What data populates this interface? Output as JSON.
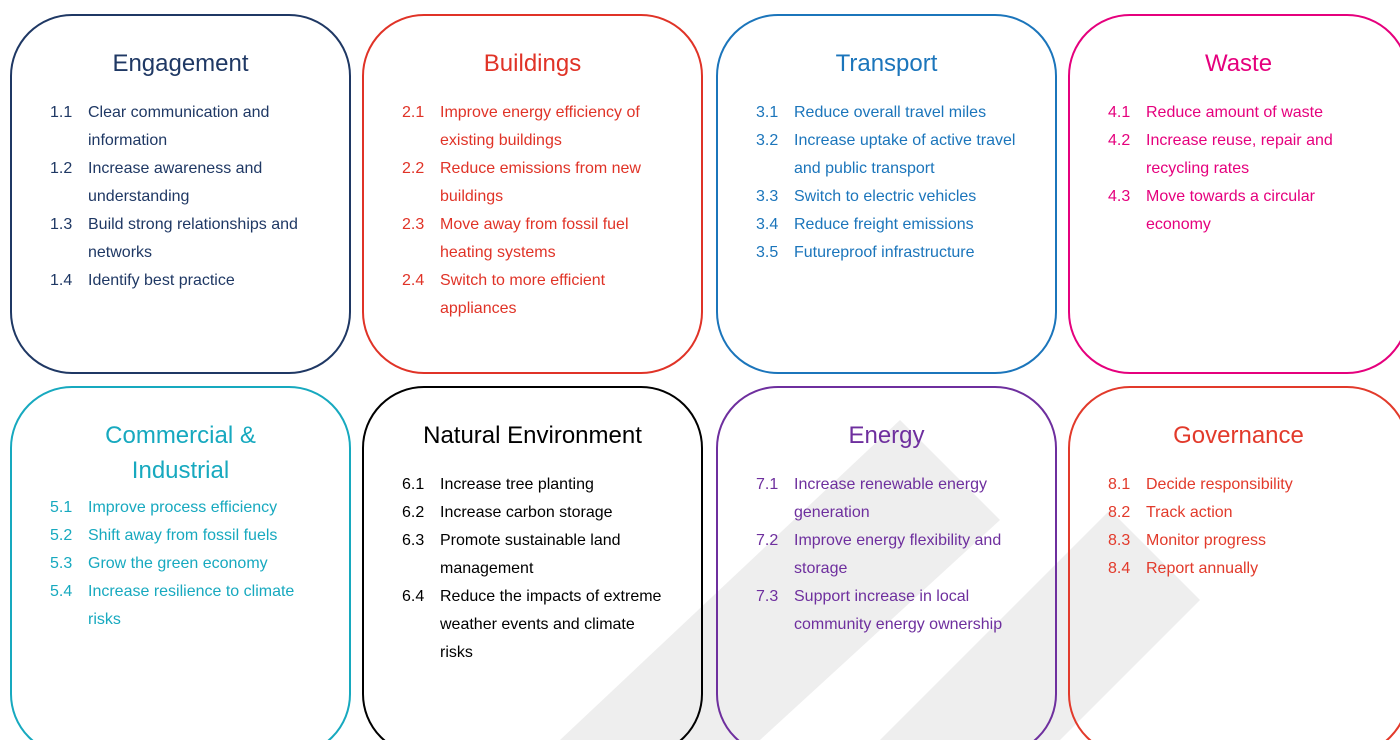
{
  "boxes": [
    {
      "title": "Engagement",
      "color": "#1f3864",
      "items": [
        {
          "number": "1.1",
          "text": "Clear communication and information"
        },
        {
          "number": "1.2",
          "text": "Increase awareness and understanding"
        },
        {
          "number": "1.3",
          "text": "Build strong relationships and networks"
        },
        {
          "number": "1.4",
          "text": "Identify best practice"
        }
      ]
    },
    {
      "title": "Buildings",
      "color": "#e03327",
      "items": [
        {
          "number": "2.1",
          "text": "Improve energy efficiency of existing buildings"
        },
        {
          "number": "2.2",
          "text": "Reduce emissions from new buildings"
        },
        {
          "number": "2.3",
          "text": "Move away from fossil fuel heating systems"
        },
        {
          "number": "2.4",
          "text": "Switch to more efficient appliances"
        }
      ]
    },
    {
      "title": "Transport",
      "color": "#1b75bb",
      "items": [
        {
          "number": "3.1",
          "text": "Reduce overall travel miles"
        },
        {
          "number": "3.2",
          "text": "Increase uptake of active travel and public transport"
        },
        {
          "number": "3.3",
          "text": "Switch to electric vehicles"
        },
        {
          "number": "3.4",
          "text": "Reduce freight emissions"
        },
        {
          "number": "3.5",
          "text": "Futureproof infrastructure"
        }
      ]
    },
    {
      "title": "Waste",
      "color": "#e5007d",
      "items": [
        {
          "number": "4.1",
          "text": "Reduce amount of waste"
        },
        {
          "number": "4.2",
          "text": "Increase reuse, repair and recycling rates"
        },
        {
          "number": "4.3",
          "text": "Move towards a circular economy"
        }
      ]
    },
    {
      "title": "Commercial & Industrial",
      "color": "#17a9bf",
      "items": [
        {
          "number": "5.1",
          "text": "Improve process efficiency"
        },
        {
          "number": "5.2",
          "text": "Shift away from fossil fuels"
        },
        {
          "number": "5.3",
          "text": "Grow the green economy"
        },
        {
          "number": "5.4",
          "text": "Increase resilience to climate risks"
        }
      ]
    },
    {
      "title": "Natural Environment",
      "color": "#000000",
      "items": [
        {
          "number": "6.1",
          "text": "Increase tree planting"
        },
        {
          "number": "6.2",
          "text": "Increase carbon storage"
        },
        {
          "number": "6.3",
          "text": "Promote sustainable land management"
        },
        {
          "number": "6.4",
          "text": "Reduce the impacts of extreme weather events and climate risks"
        }
      ]
    },
    {
      "title": "Energy",
      "color": "#6e2f9e",
      "items": [
        {
          "number": "7.1",
          "text": "Increase renewable energy generation"
        },
        {
          "number": "7.2",
          "text": "Improve energy flexibility and storage"
        },
        {
          "number": "7.3",
          "text": "Support increase in local community energy ownership"
        }
      ]
    },
    {
      "title": "Governance",
      "color": "#e23a2b",
      "items": [
        {
          "number": "8.1",
          "text": "Decide responsibility"
        },
        {
          "number": "8.2",
          "text": "Track action"
        },
        {
          "number": "8.3",
          "text": "Monitor progress"
        },
        {
          "number": "8.4",
          "text": "Report annually"
        }
      ]
    }
  ]
}
